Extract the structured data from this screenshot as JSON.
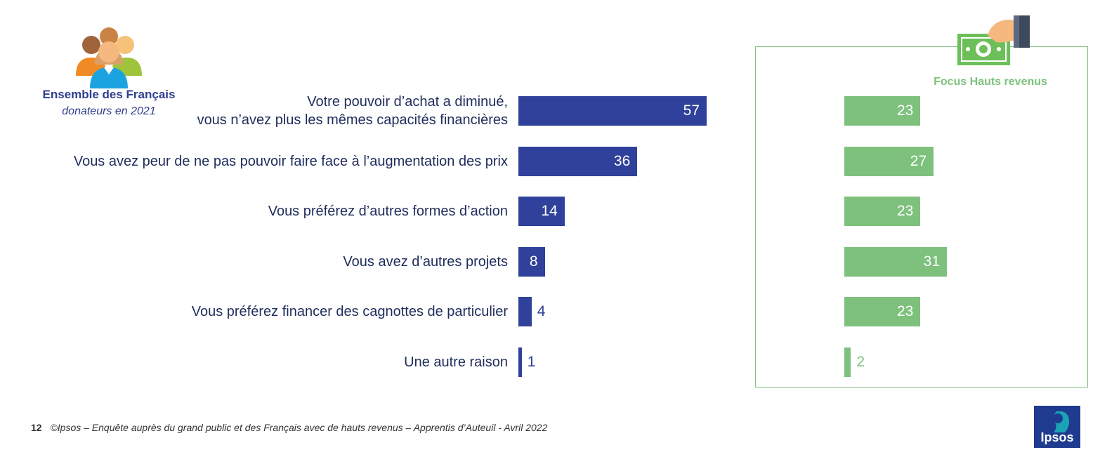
{
  "header": {
    "group_title": "Ensemble des Français",
    "group_subtitle": "donateurs en 2021",
    "focus_title": "Focus Hauts revenus"
  },
  "chart_data": {
    "type": "bar",
    "orientation": "horizontal",
    "categories": [
      [
        "Votre pouvoir d’achat a diminué,",
        "vous n’avez plus les mêmes capacités financières"
      ],
      [
        "Vous avez peur de ne pas pouvoir faire face à l’augmentation des prix"
      ],
      [
        "Vous préférez d’autres formes d’action"
      ],
      [
        "Vous avez d’autres projets"
      ],
      [
        "Vous préférez financer des cagnottes de particulier"
      ],
      [
        "Une autre raison"
      ]
    ],
    "series": [
      {
        "name": "Ensemble des Français",
        "values": [
          57,
          36,
          14,
          8,
          4,
          1
        ],
        "color": "#2f419a"
      },
      {
        "name": "Focus Hauts revenus",
        "values": [
          23,
          27,
          23,
          31,
          23,
          2
        ],
        "color": "#7dc17d"
      }
    ]
  },
  "footer": {
    "page_number": "12",
    "text": "©Ipsos – Enquête auprès du grand public et des Français avec de hauts revenus – Apprentis d’Auteuil - Avril 2022"
  },
  "logo": {
    "text": "Ipsos"
  },
  "icons": {
    "people": "people-group-icon",
    "money": "money-hand-icon"
  }
}
